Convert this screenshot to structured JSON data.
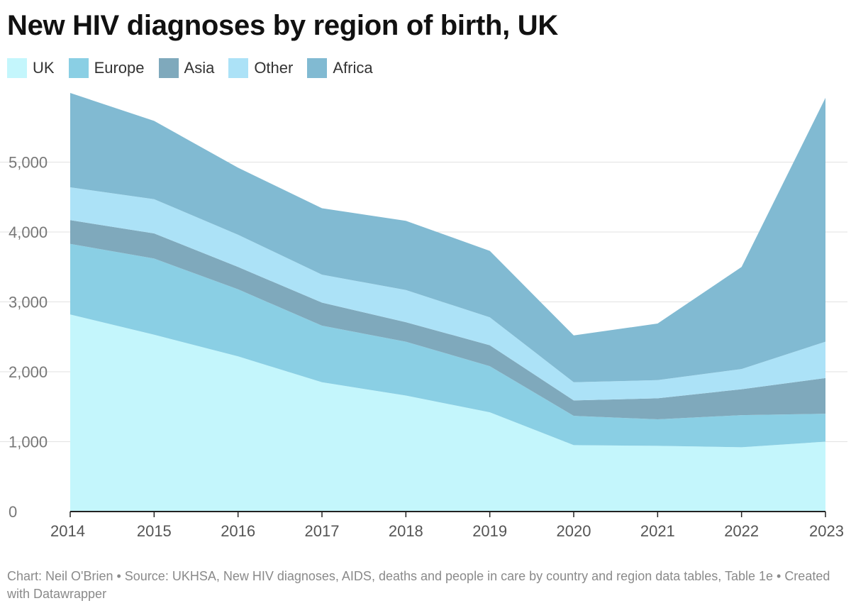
{
  "title": "New HIV diagnoses by region of birth, UK",
  "footer": "Chart: Neil O'Brien • Source: UKHSA, New HIV diagnoses, AIDS, deaths and people in care by country and region data tables, Table 1e • Created with Datawrapper",
  "chart_data": {
    "type": "area",
    "stacked": true,
    "title": "New HIV diagnoses by region of birth, UK",
    "xlabel": "",
    "ylabel": "",
    "x": [
      "2014",
      "2015",
      "2016",
      "2017",
      "2018",
      "2019",
      "2020",
      "2021",
      "2022",
      "2023"
    ],
    "ylim": [
      0,
      6000
    ],
    "yticks": [
      0,
      1000,
      2000,
      3000,
      4000,
      5000
    ],
    "ytick_labels": [
      "0",
      "1,000",
      "2,000",
      "3,000",
      "4,000",
      "5,000"
    ],
    "grid": true,
    "legend_position": "top-left",
    "series": [
      {
        "name": "UK",
        "color": "#c4f6fc",
        "values": [
          2820,
          2530,
          2220,
          1850,
          1660,
          1420,
          950,
          940,
          920,
          1000
        ]
      },
      {
        "name": "Europe",
        "color": "#8acfe4",
        "values": [
          1010,
          1090,
          960,
          810,
          770,
          660,
          420,
          380,
          460,
          400
        ]
      },
      {
        "name": "Asia",
        "color": "#7fa9bc",
        "values": [
          340,
          360,
          320,
          330,
          280,
          300,
          220,
          300,
          370,
          510
        ]
      },
      {
        "name": "Other",
        "color": "#ace2f7",
        "values": [
          470,
          490,
          460,
          400,
          460,
          400,
          260,
          260,
          290,
          520
        ]
      },
      {
        "name": "Africa",
        "color": "#81bad2",
        "values": [
          1350,
          1120,
          960,
          950,
          990,
          950,
          670,
          810,
          1460,
          3490
        ]
      }
    ]
  }
}
